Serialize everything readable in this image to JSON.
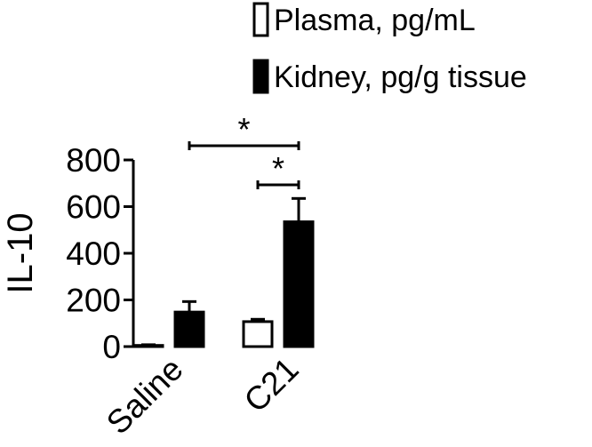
{
  "chart_data": {
    "type": "bar",
    "ylabel": "IL-10",
    "ylim": [
      0,
      800
    ],
    "yticks": [
      0,
      200,
      400,
      600,
      800
    ],
    "categories": [
      "Saline",
      "C21"
    ],
    "legend_position": "top-right",
    "series": [
      {
        "name": "Plasma, pg/mL",
        "fill": "#ffffff",
        "values": [
          5,
          107
        ],
        "errors": [
          3,
          10
        ]
      },
      {
        "name": "Kidney, pg/g tissue",
        "fill": "#000000",
        "values": [
          148,
          535
        ],
        "errors": [
          45,
          100
        ]
      }
    ],
    "significance": [
      {
        "label": "*",
        "from": {
          "category": 0,
          "series": 1
        },
        "to": {
          "category": 1,
          "series": 1
        }
      },
      {
        "label": "*",
        "from": {
          "category": 1,
          "series": 0
        },
        "to": {
          "category": 1,
          "series": 1
        }
      }
    ]
  }
}
